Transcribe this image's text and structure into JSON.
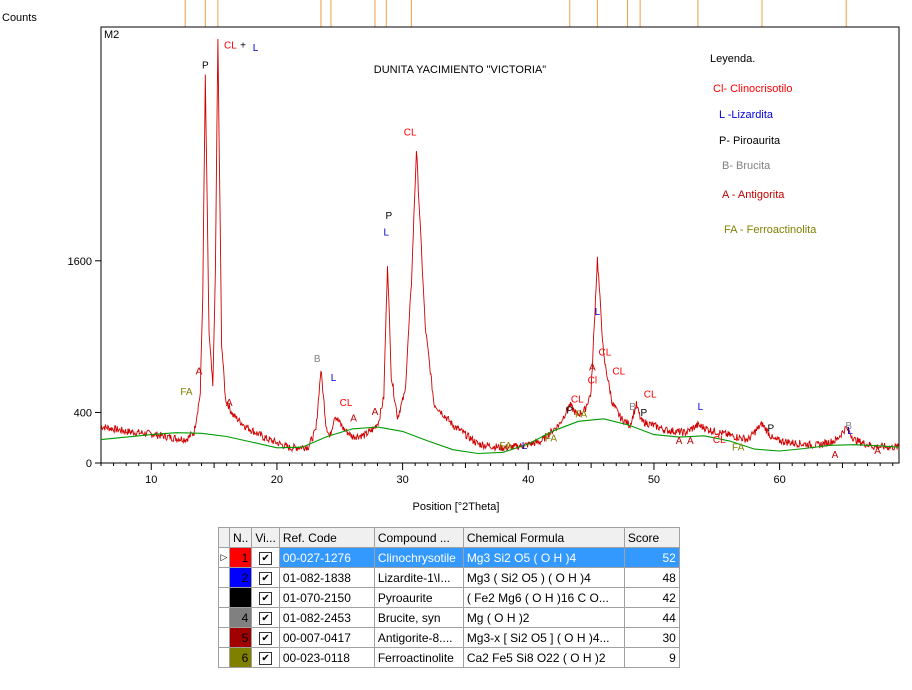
{
  "chart_data": {
    "type": "line",
    "panel_label": "M2",
    "title": "DUNITA YACIMIENTO \"VICTORIA\"",
    "xlabel": "Position [°2Theta]",
    "ylabel": "Counts",
    "xlim": [
      6,
      69.5
    ],
    "ylim": [
      0,
      3450
    ],
    "x_ticks": [
      10,
      20,
      30,
      40,
      50,
      60
    ],
    "y_ticks": [
      0,
      400,
      1600
    ],
    "grid": false,
    "legend_title": "Leyenda.",
    "legend": [
      {
        "text": "Cl- Clinocrisotilo",
        "color": "#ff0000"
      },
      {
        "text": "L -Lizardita",
        "color": "#0000dd"
      },
      {
        "text": "P- Piroaurita",
        "color": "#000000"
      },
      {
        "text": "B- Brucita",
        "color": "#808080"
      },
      {
        "text": "A - Antigorita",
        "color": "#c00000"
      },
      {
        "text": "FA - Ferroactinolita",
        "color": "#808000"
      }
    ],
    "reference_ticks": [
      12.7,
      14.3,
      15.3,
      23.5,
      24.3,
      27.8,
      28.7,
      30.7,
      43.3,
      45.5,
      47.9,
      48.9,
      53.5,
      58.6,
      65.3
    ],
    "series": [
      {
        "color": "#d00000",
        "x": [
          6,
          8,
          10,
          12,
          12.8,
          13.4,
          13.9,
          14.1,
          14.3,
          14.6,
          14.9,
          15.1,
          15.3,
          15.6,
          15.9,
          16.5,
          17.5,
          19,
          21,
          22.5,
          23.1,
          23.5,
          23.9,
          24.2,
          24.6,
          25.3,
          26,
          27,
          27.7,
          28.1,
          28.5,
          28.8,
          29.1,
          29.6,
          30.2,
          30.7,
          31.1,
          31.8,
          32.5,
          34,
          36,
          38,
          39.5,
          41,
          42.5,
          43.3,
          43.9,
          44.5,
          45,
          45.5,
          46,
          46.7,
          47.4,
          48.1,
          48.6,
          49,
          49.6,
          51,
          52.5,
          53.5,
          54.5,
          56,
          57.5,
          58.6,
          59.5,
          61,
          63,
          64.5,
          65.3,
          66,
          67.5,
          69.5
        ],
        "values": [
          290,
          250,
          230,
          195,
          190,
          240,
          550,
          1350,
          3050,
          1020,
          600,
          1500,
          3340,
          950,
          510,
          380,
          290,
          200,
          120,
          130,
          260,
          740,
          310,
          200,
          380,
          270,
          210,
          220,
          270,
          330,
          520,
          1580,
          690,
          360,
          560,
          1420,
          2480,
          1080,
          470,
          300,
          150,
          120,
          135,
          170,
          310,
          460,
          380,
          420,
          560,
          1620,
          840,
          470,
          350,
          300,
          460,
          330,
          310,
          260,
          240,
          300,
          260,
          220,
          185,
          310,
          185,
          160,
          140,
          180,
          280,
          180,
          130,
          125
        ]
      },
      {
        "color": "#009900",
        "x": [
          6,
          8,
          10,
          12,
          14,
          16,
          18,
          20,
          22,
          24,
          26,
          28,
          30,
          32,
          34,
          36,
          38,
          40,
          42,
          44,
          46,
          48,
          50,
          52,
          54,
          56,
          58,
          60,
          62,
          64,
          66,
          68,
          69.5
        ],
        "values": [
          185,
          205,
          225,
          240,
          235,
          210,
          165,
          120,
          125,
          210,
          270,
          285,
          250,
          175,
          105,
          75,
          85,
          150,
          255,
          330,
          350,
          300,
          225,
          205,
          215,
          175,
          110,
          95,
          115,
          140,
          145,
          135,
          125
        ]
      }
    ],
    "peak_labels": [
      {
        "t": "FA",
        "x": 12.8,
        "y": 540,
        "c": "#808000"
      },
      {
        "t": "A",
        "x": 13.8,
        "y": 700,
        "c": "#c00000"
      },
      {
        "t": "P",
        "x": 14.3,
        "y": 3120,
        "c": "#000000"
      },
      {
        "t": "CL",
        "x": 16.3,
        "y": 3280,
        "c": "#ff0000"
      },
      {
        "t": "+",
        "x": 17.3,
        "y": 3280,
        "c": "#000000"
      },
      {
        "t": "L",
        "x": 18.3,
        "y": 3260,
        "c": "#0000dd"
      },
      {
        "t": "A",
        "x": 16.2,
        "y": 450,
        "c": "#c00000"
      },
      {
        "t": "B",
        "x": 23.2,
        "y": 800,
        "c": "#808080"
      },
      {
        "t": "L",
        "x": 24.5,
        "y": 650,
        "c": "#0000dd"
      },
      {
        "t": "CL",
        "x": 25.5,
        "y": 450,
        "c": "#ff0000"
      },
      {
        "t": "A",
        "x": 26.1,
        "y": 330,
        "c": "#c00000"
      },
      {
        "t": "A",
        "x": 27.8,
        "y": 380,
        "c": "#c00000"
      },
      {
        "t": "P",
        "x": 28.9,
        "y": 1930,
        "c": "#000000"
      },
      {
        "t": "L",
        "x": 28.7,
        "y": 1800,
        "c": "#0000dd"
      },
      {
        "t": "CL",
        "x": 30.6,
        "y": 2590,
        "c": "#ff0000"
      },
      {
        "t": "FA",
        "x": 38.2,
        "y": 110,
        "c": "#808000"
      },
      {
        "t": "L",
        "x": 39.7,
        "y": 110,
        "c": "#0000dd"
      },
      {
        "t": "FA",
        "x": 41.8,
        "y": 170,
        "c": "#808000"
      },
      {
        "t": "P",
        "x": 43.3,
        "y": 390,
        "c": "#000000"
      },
      {
        "t": "CL",
        "x": 43.9,
        "y": 480,
        "c": "#ff0000"
      },
      {
        "t": "FA",
        "x": 44.2,
        "y": 360,
        "c": "#808000"
      },
      {
        "t": "A",
        "x": 45.1,
        "y": 730,
        "c": "#c00000"
      },
      {
        "t": "Cl",
        "x": 45.1,
        "y": 630,
        "c": "#ff0000"
      },
      {
        "t": "L",
        "x": 45.5,
        "y": 1170,
        "c": "#0000dd"
      },
      {
        "t": "CL",
        "x": 46.1,
        "y": 850,
        "c": "#ff0000"
      },
      {
        "t": "CL",
        "x": 47.2,
        "y": 700,
        "c": "#ff0000"
      },
      {
        "t": "B",
        "x": 48.3,
        "y": 420,
        "c": "#808080"
      },
      {
        "t": "P",
        "x": 49.2,
        "y": 370,
        "c": "#000000"
      },
      {
        "t": "CL",
        "x": 49.7,
        "y": 520,
        "c": "#ff0000"
      },
      {
        "t": "A",
        "x": 52.0,
        "y": 150,
        "c": "#c00000"
      },
      {
        "t": "A",
        "x": 52.9,
        "y": 150,
        "c": "#c00000"
      },
      {
        "t": "L",
        "x": 53.7,
        "y": 420,
        "c": "#0000dd"
      },
      {
        "t": "CL",
        "x": 55.2,
        "y": 160,
        "c": "#ff0000"
      },
      {
        "t": "FA",
        "x": 56.7,
        "y": 100,
        "c": "#808000"
      },
      {
        "t": "P",
        "x": 59.3,
        "y": 250,
        "c": "#000000"
      },
      {
        "t": "A",
        "x": 64.4,
        "y": 40,
        "c": "#c00000"
      },
      {
        "t": "B",
        "x": 65.5,
        "y": 270,
        "c": "#808080"
      },
      {
        "t": "L",
        "x": 65.6,
        "y": 230,
        "c": "#0000dd"
      },
      {
        "t": "A",
        "x": 67.8,
        "y": 70,
        "c": "#c00000"
      }
    ]
  },
  "table": {
    "headers": [
      "N..",
      "Vi...",
      "Ref. Code",
      "Compound ...",
      "Chemical Formula",
      "Score"
    ],
    "rows": [
      {
        "n": "1",
        "color": "#ff0000",
        "ref": "00-027-1276",
        "compound": "Clinochrysotile",
        "formula": "Mg3 Si2 O5 ( O H )4",
        "score": "52",
        "selected": true
      },
      {
        "n": "2",
        "color": "#0000ff",
        "ref": "01-082-1838",
        "compound": "Lizardite-1\\I...",
        "formula": "Mg3 ( Si2 O5 ) ( O H )4",
        "score": "48",
        "selected": false
      },
      {
        "n": "3",
        "color": "#000000",
        "ref": "01-070-2150",
        "compound": "Pyroaurite",
        "formula": "( Fe2 Mg6 ( O H )16 C O...",
        "score": "42",
        "selected": false
      },
      {
        "n": "4",
        "color": "#808080",
        "ref": "01-082-2453",
        "compound": "Brucite, syn",
        "formula": "Mg ( O H )2",
        "score": "44",
        "selected": false
      },
      {
        "n": "5",
        "color": "#a00000",
        "ref": "00-007-0417",
        "compound": "Antigorite-8....",
        "formula": "Mg3-x [ Si2 O5 ] ( O H )4...",
        "score": "30",
        "selected": false
      },
      {
        "n": "6",
        "color": "#808000",
        "ref": "00-023-0118",
        "compound": "Ferroactinolite",
        "formula": "Ca2 Fe5 Si8 O22 ( O H )2",
        "score": "9",
        "selected": false
      }
    ]
  }
}
